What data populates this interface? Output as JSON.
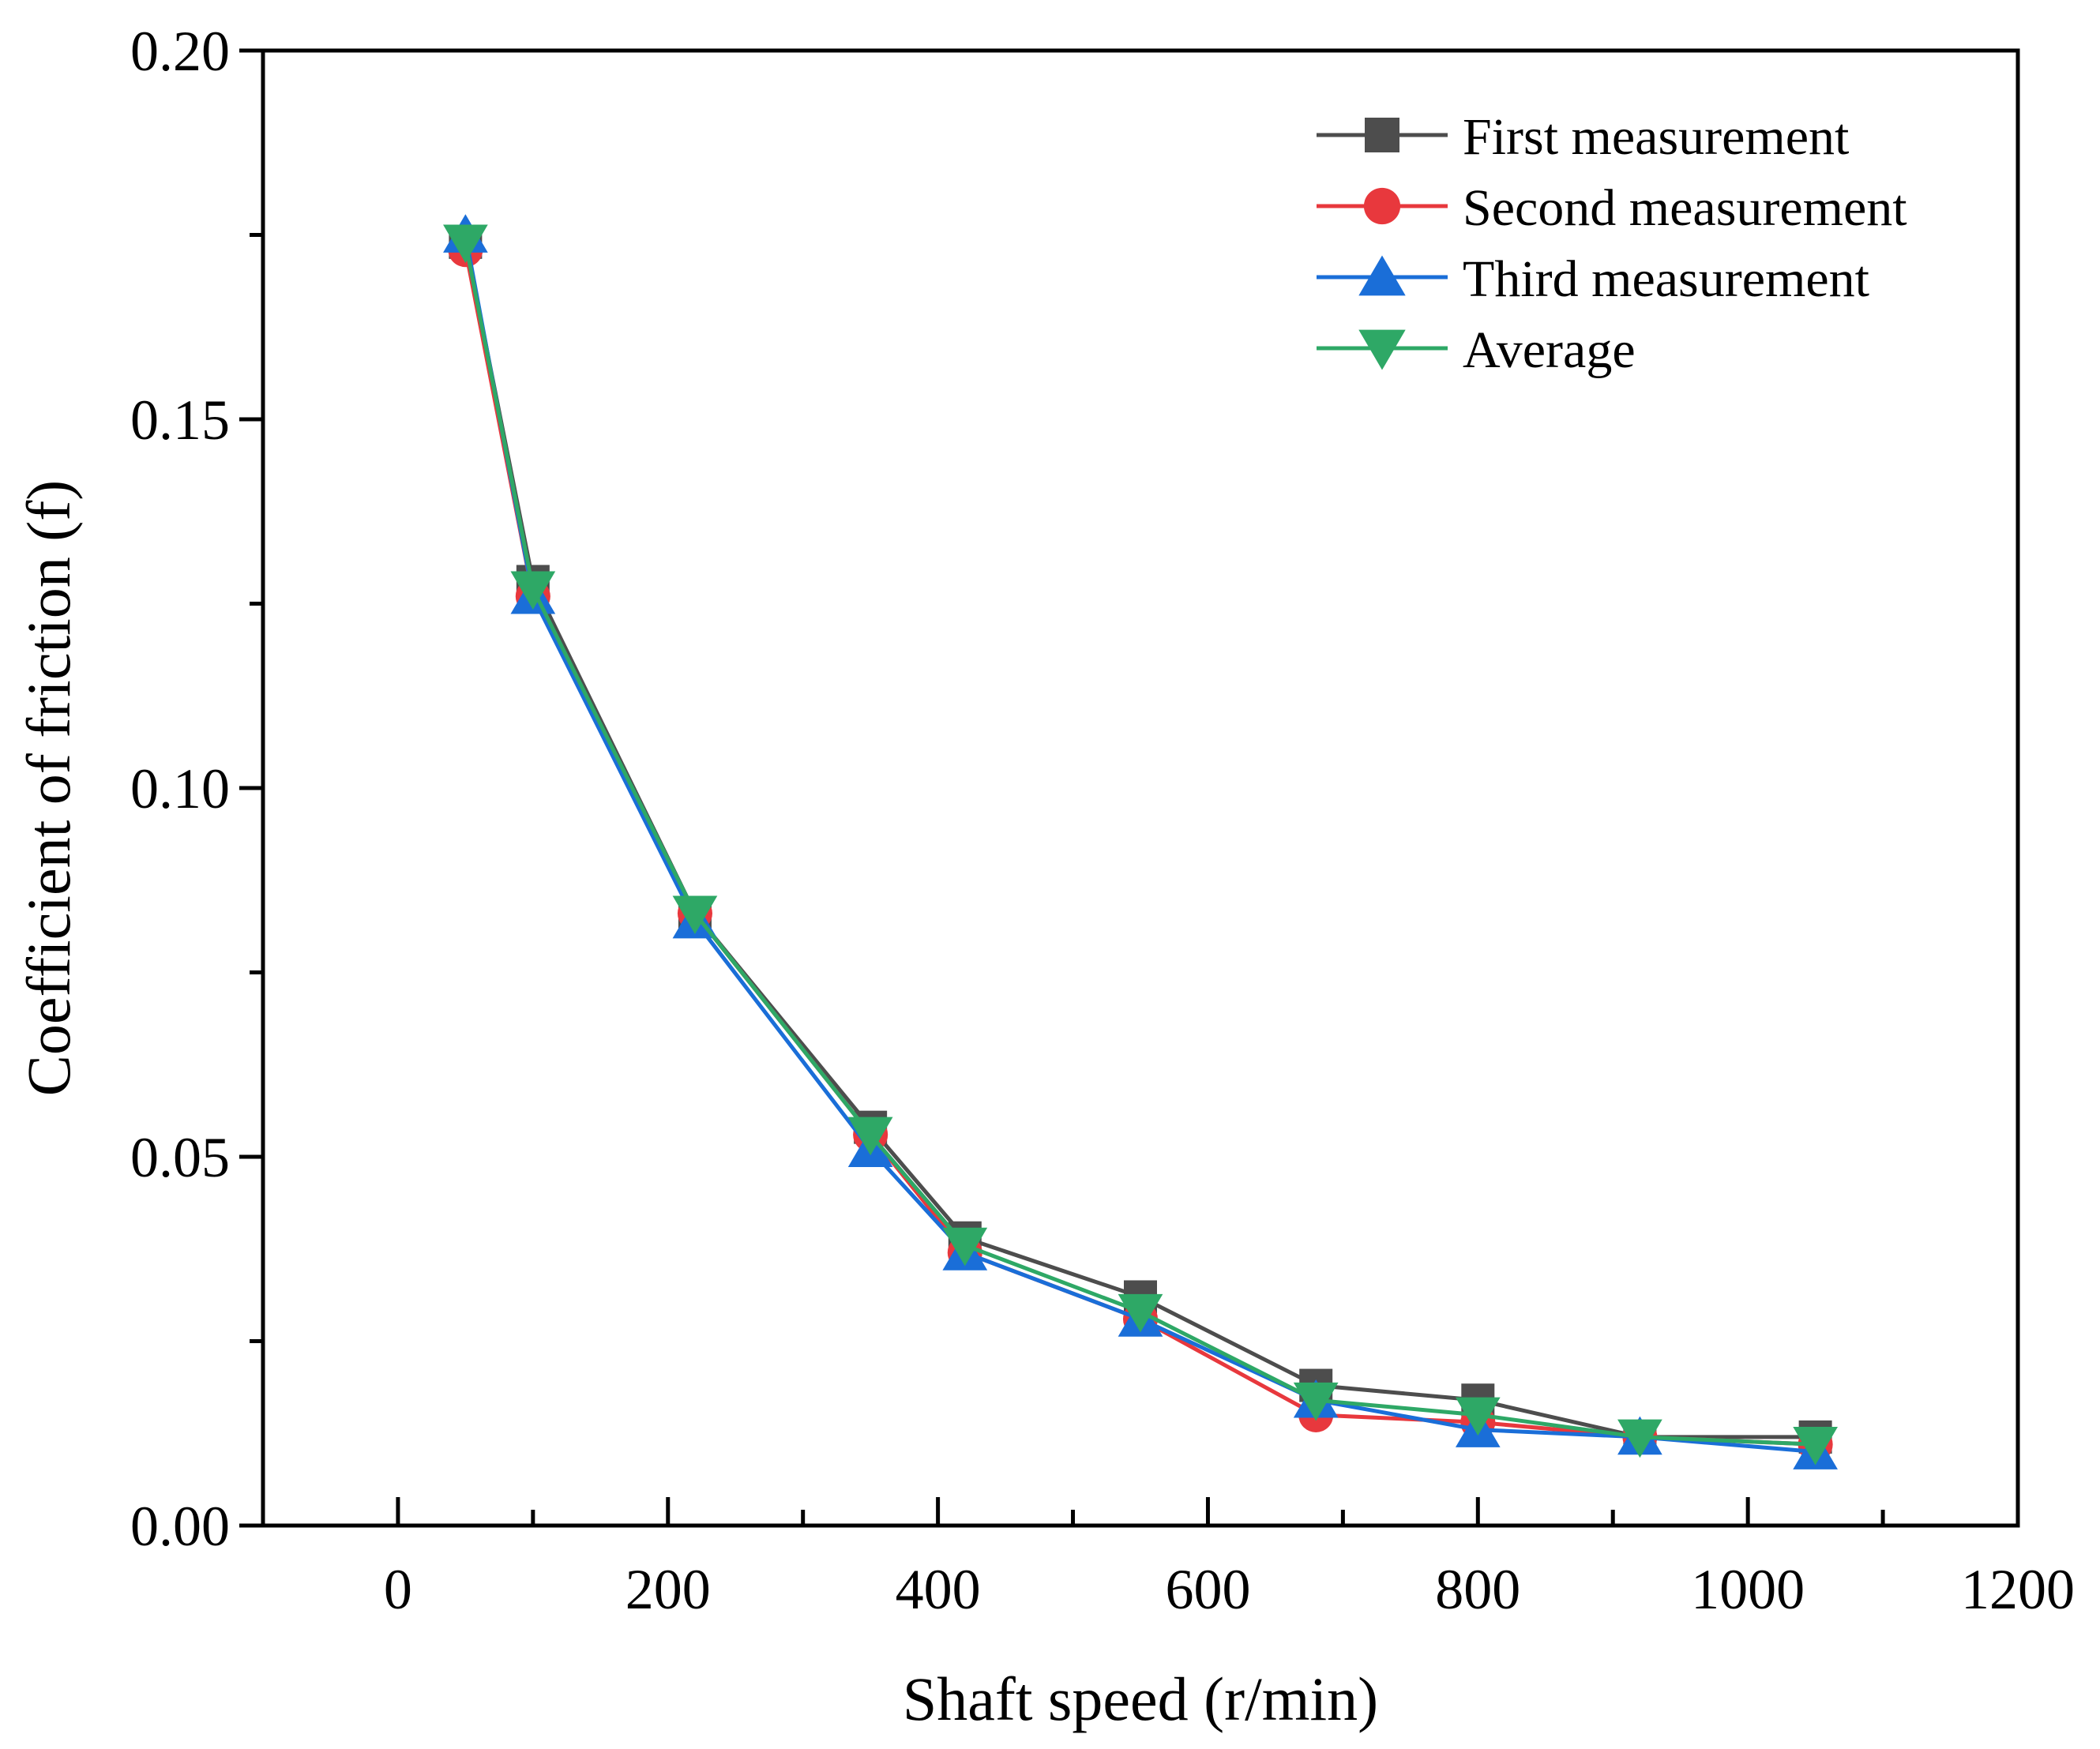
{
  "chart_data": {
    "type": "line",
    "title": "",
    "xlabel": "Shaft speed (r/min)",
    "ylabel": "Coefficient of friction (f)",
    "xlim": [
      -100,
      1200
    ],
    "ylim": [
      0,
      0.2
    ],
    "x_ticks": [
      0,
      200,
      400,
      600,
      800,
      1000,
      1200
    ],
    "x_tick_labels": [
      "0",
      "200",
      "400",
      "600",
      "800",
      "1000",
      "1200"
    ],
    "x_minor_ticks": [
      100,
      300,
      500,
      700,
      900,
      1100
    ],
    "y_ticks": [
      0,
      0.05,
      0.1,
      0.15,
      0.2
    ],
    "y_tick_labels": [
      "0.00",
      "0.05",
      "0.10",
      "0.15",
      "0.20"
    ],
    "y_minor_ticks": [
      0.025,
      0.075,
      0.125,
      0.175
    ],
    "grid": false,
    "legend_position": "top-right",
    "x": [
      50,
      100,
      220,
      350,
      420,
      550,
      680,
      800,
      920,
      1050
    ],
    "series": [
      {
        "name": "First measurement",
        "marker": "square",
        "color": "#4d4d4d",
        "values": [
          0.174,
          0.128,
          0.083,
          0.054,
          0.039,
          0.031,
          0.019,
          0.017,
          0.012,
          0.012
        ]
      },
      {
        "name": "Second measurement",
        "marker": "circle",
        "color": "#e8383d",
        "values": [
          0.173,
          0.126,
          0.083,
          0.053,
          0.037,
          0.028,
          0.015,
          0.014,
          0.012,
          0.011
        ]
      },
      {
        "name": "Third measurement",
        "marker": "triangle-up",
        "color": "#1a6ed8",
        "values": [
          0.175,
          0.126,
          0.082,
          0.051,
          0.037,
          0.028,
          0.017,
          0.013,
          0.012,
          0.01
        ]
      },
      {
        "name": "Average",
        "marker": "triangle-down",
        "color": "#2ea866",
        "values": [
          0.174,
          0.127,
          0.083,
          0.053,
          0.038,
          0.029,
          0.017,
          0.015,
          0.012,
          0.011
        ]
      }
    ]
  }
}
